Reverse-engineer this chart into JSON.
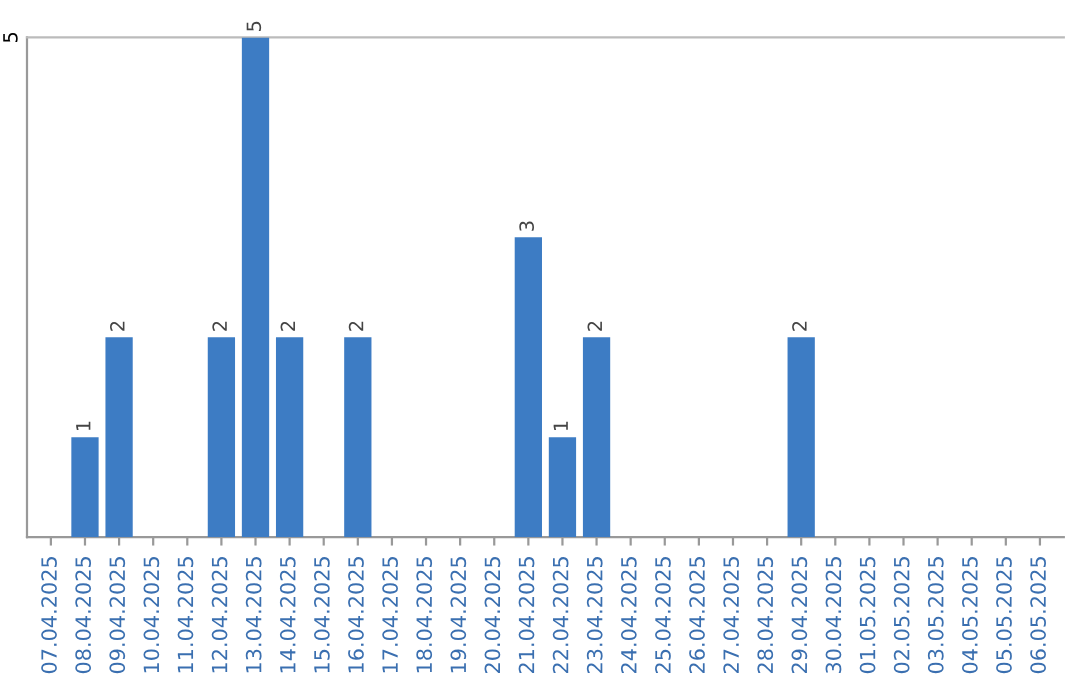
{
  "chart_data": {
    "type": "bar",
    "categories": [
      "07.04.2025",
      "08.04.2025",
      "09.04.2025",
      "10.04.2025",
      "11.04.2025",
      "12.04.2025",
      "13.04.2025",
      "14.04.2025",
      "15.04.2025",
      "16.04.2025",
      "17.04.2025",
      "18.04.2025",
      "19.04.2025",
      "20.04.2025",
      "21.04.2025",
      "22.04.2025",
      "23.04.2025",
      "24.04.2025",
      "25.04.2025",
      "26.04.2025",
      "27.04.2025",
      "28.04.2025",
      "29.04.2025",
      "30.04.2025",
      "01.05.2025",
      "02.05.2025",
      "03.05.2025",
      "04.05.2025",
      "05.05.2025",
      "06.05.2025"
    ],
    "values": [
      0,
      1,
      2,
      0,
      0,
      2,
      5,
      2,
      0,
      2,
      0,
      0,
      0,
      0,
      3,
      1,
      2,
      0,
      0,
      0,
      0,
      0,
      2,
      0,
      0,
      0,
      0,
      0,
      0,
      0
    ],
    "value_labels": [
      null,
      "1",
      "2",
      null,
      null,
      "2",
      "5",
      "2",
      null,
      "2",
      null,
      null,
      null,
      null,
      "3",
      "1",
      "2",
      null,
      null,
      null,
      null,
      null,
      "2",
      null,
      null,
      null,
      null,
      null,
      null,
      null
    ],
    "color": "#3d7cc4",
    "ylim": [
      0,
      5
    ],
    "yticks": [
      5
    ]
  }
}
